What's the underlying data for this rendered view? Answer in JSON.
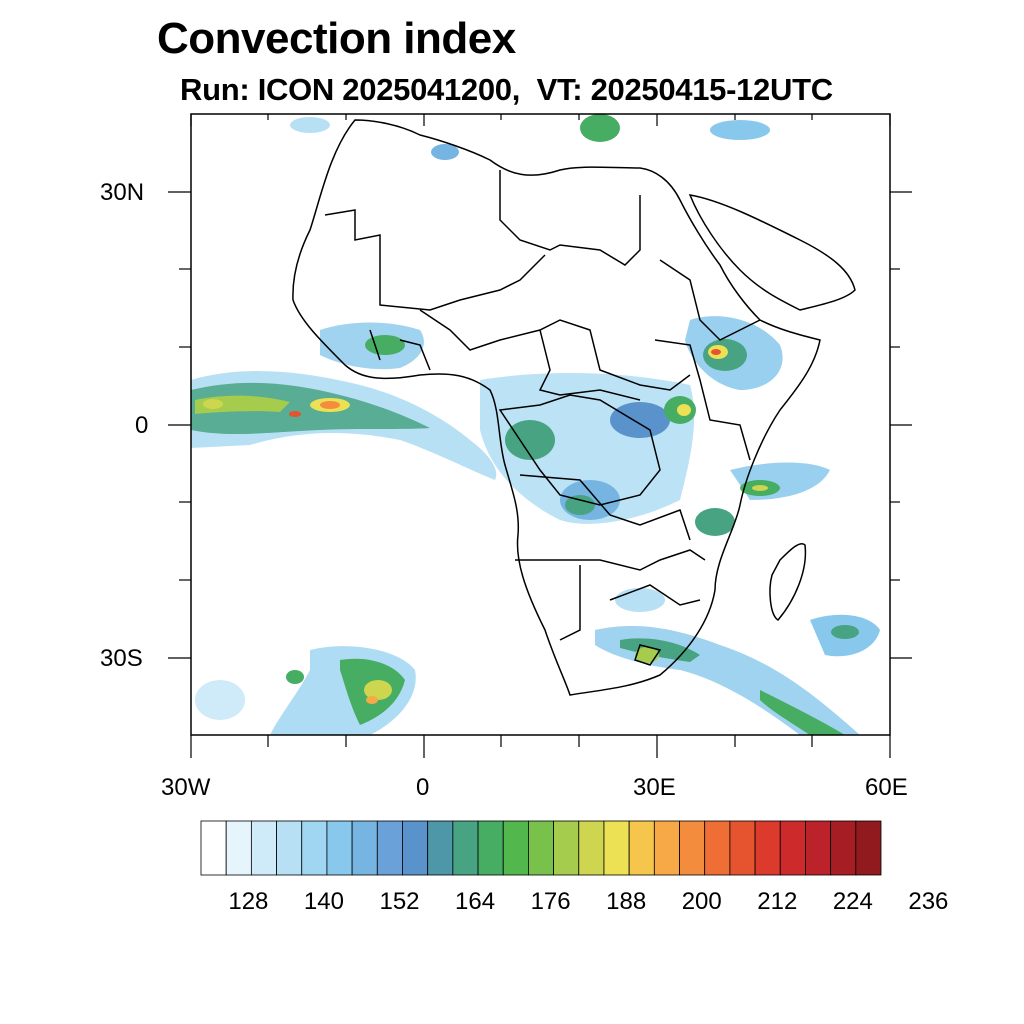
{
  "title": "Convection index",
  "subtitle": "Run: ICON 2025041200,  VT: 20250415-12UTC",
  "map": {
    "region": "Africa",
    "lon_range": [
      "30W",
      "60E"
    ],
    "lat_range": [
      "40S",
      "40N"
    ]
  },
  "axes": {
    "y_labels": [
      "30N",
      "0",
      "30S"
    ],
    "x_labels": [
      "30W",
      "0",
      "30E",
      "60E"
    ]
  },
  "colorbar": {
    "colors": [
      "#ffffff",
      "#e6f4fc",
      "#cfeaf8",
      "#b8e0f5",
      "#a0d6f2",
      "#88c8ec",
      "#76b4e2",
      "#6aa1d8",
      "#5a92cc",
      "#4d97a8",
      "#47a382",
      "#46ad62",
      "#52b84e",
      "#78c24b",
      "#a5cc4c",
      "#cdd64e",
      "#ece054",
      "#f6c64c",
      "#f6a946",
      "#f48c3e",
      "#ee6e35",
      "#e5542e",
      "#dc3a2c",
      "#cd2a2c",
      "#bb222a",
      "#a61d24",
      "#901a1e"
    ],
    "tick_labels": [
      "128",
      "140",
      "152",
      "164",
      "176",
      "188",
      "200",
      "212",
      "224",
      "236"
    ]
  }
}
